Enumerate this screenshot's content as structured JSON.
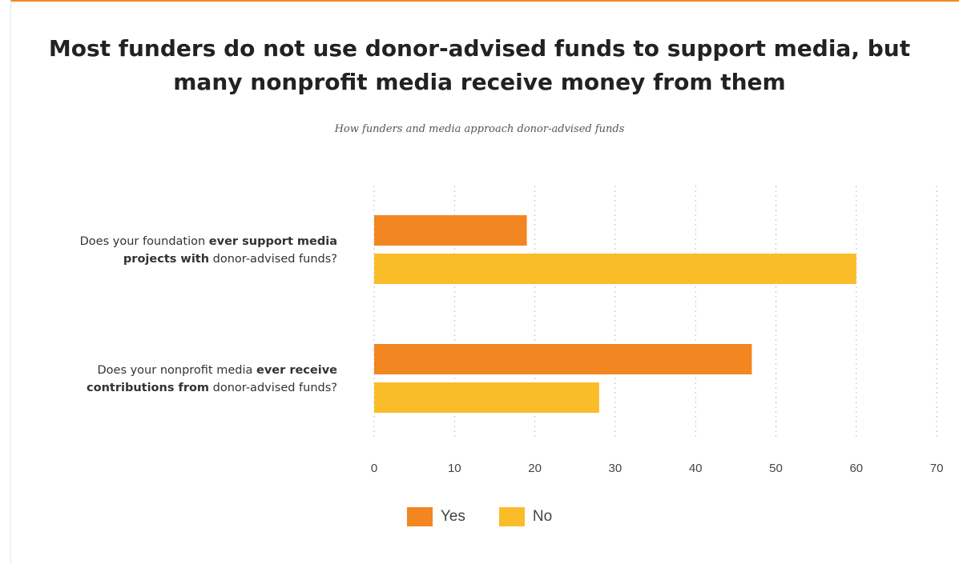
{
  "title_line1": "Most funders do not use donor-advised funds to support media, but",
  "title_line2": "many nonprofit media receive money from them",
  "subtitle": "How funders and media approach donor-advised funds",
  "colors": {
    "yes": "#f28621",
    "no": "#fbbc2a",
    "accent": "#f08a24"
  },
  "chart_data": {
    "type": "bar",
    "orientation": "horizontal",
    "categories": [
      {
        "lines": [
          [
            {
              "text": "Does your foundation ",
              "bold": false
            },
            {
              "text": "ever support media",
              "bold": true
            }
          ],
          [
            {
              "text": "projects with",
              "bold": true
            },
            {
              "text": " donor-advised funds?",
              "bold": false
            }
          ]
        ]
      },
      {
        "lines": [
          [
            {
              "text": "Does your nonprofit media ",
              "bold": false
            },
            {
              "text": "ever receive",
              "bold": true
            }
          ],
          [
            {
              "text": "contributions from",
              "bold": true
            },
            {
              "text": " donor-advised funds?",
              "bold": false
            }
          ]
        ]
      }
    ],
    "series": [
      {
        "name": "Yes",
        "values": [
          19,
          47
        ]
      },
      {
        "name": "No",
        "values": [
          60,
          28
        ]
      }
    ],
    "xlim": [
      0,
      70
    ],
    "xticks": [
      "0",
      "10",
      "20",
      "30",
      "40",
      "50",
      "60",
      "70"
    ],
    "grid": true,
    "legend_position": "bottom"
  }
}
